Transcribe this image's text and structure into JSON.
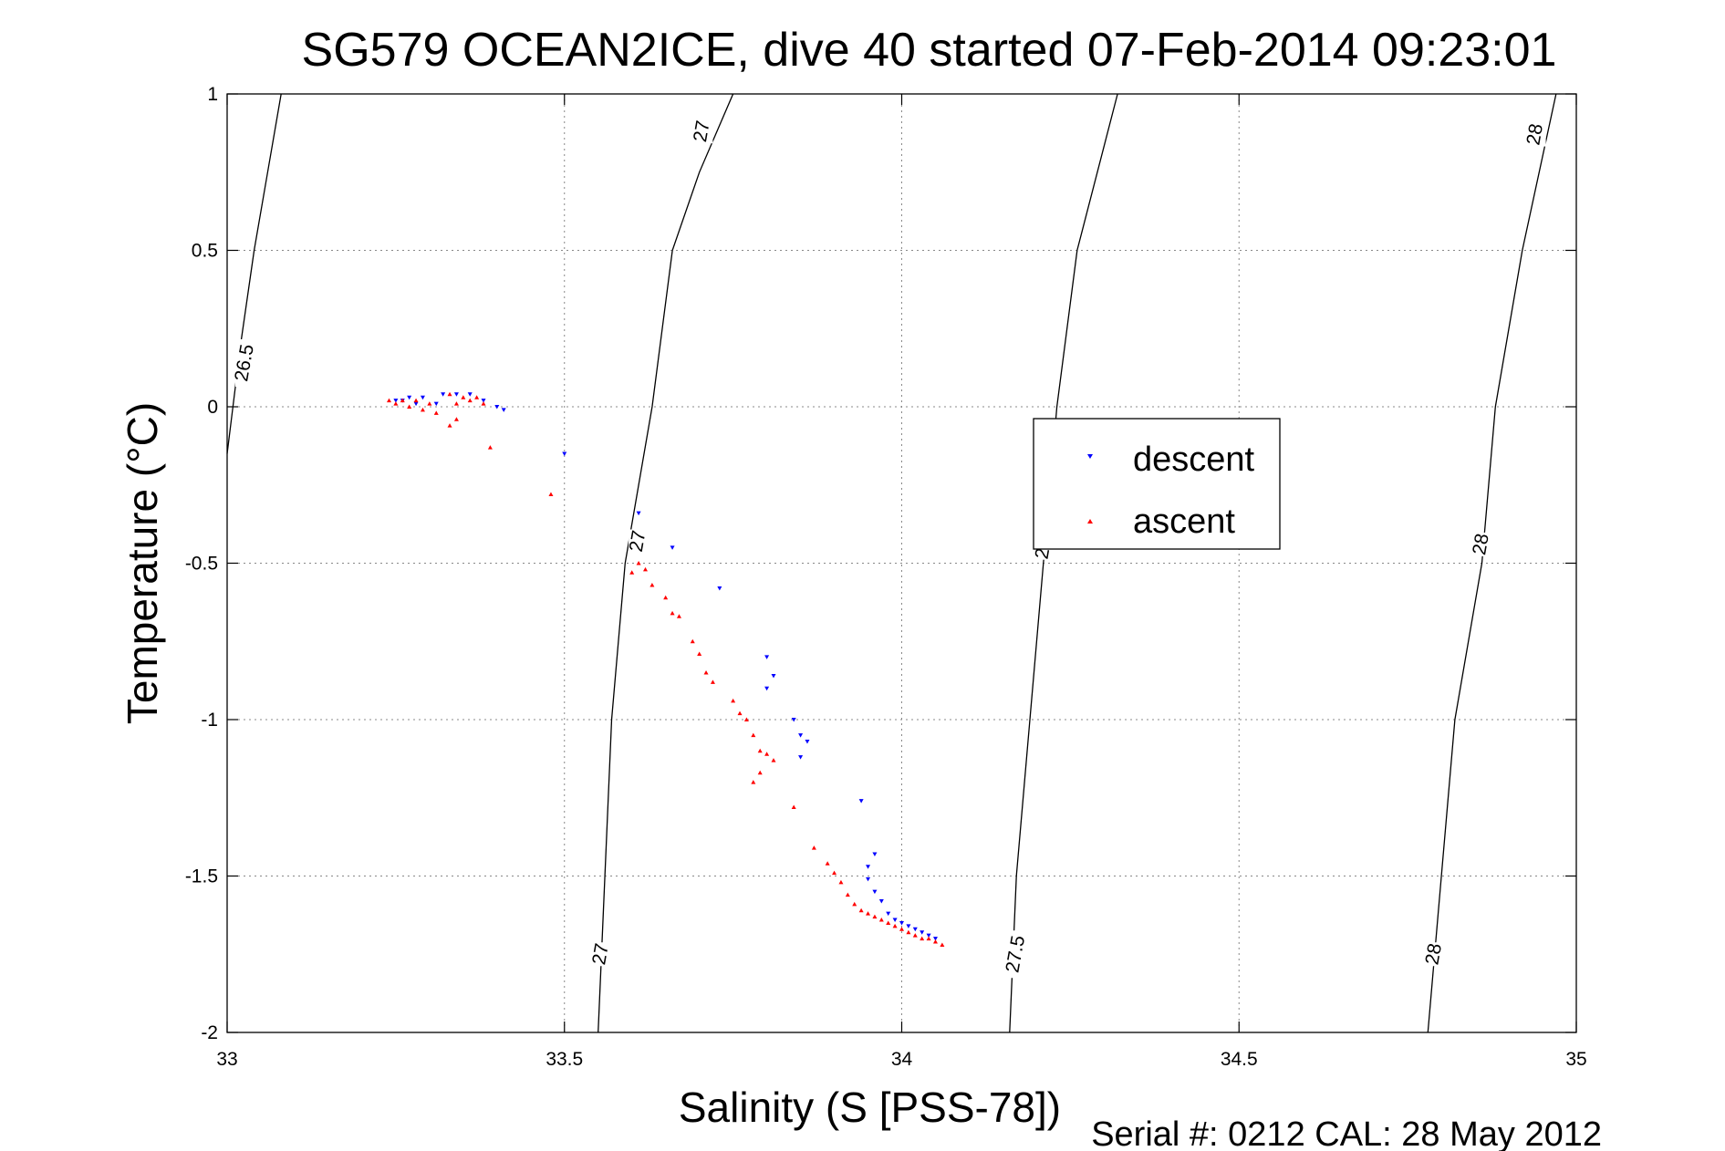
{
  "chart_data": {
    "type": "scatter",
    "title": "SG579 OCEAN2ICE, dive 40 started 07-Feb-2014 09:23:01",
    "xlabel": "Salinity (S [PSS-78])",
    "ylabel": "Temperature (°C)",
    "xlim": [
      33,
      35
    ],
    "ylim": [
      -2,
      1
    ],
    "xticks": [
      "33",
      "33.5",
      "34",
      "34.5",
      "35"
    ],
    "yticks": [
      "-2",
      "-1.5",
      "-1",
      "-0.5",
      "0",
      "0.5",
      "1"
    ],
    "grid": true,
    "legend": "center-right",
    "footer": "Serial #: 0212  CAL: 28 May 2012",
    "series": [
      {
        "name": "descent",
        "color": "#0000ff",
        "marker": "triangle-down",
        "points": [
          [
            33.25,
            0.02
          ],
          [
            33.26,
            0.02
          ],
          [
            33.27,
            0.03
          ],
          [
            33.28,
            0.01
          ],
          [
            33.29,
            0.03
          ],
          [
            33.31,
            0.01
          ],
          [
            33.32,
            0.04
          ],
          [
            33.34,
            0.04
          ],
          [
            33.36,
            0.04
          ],
          [
            33.38,
            0.02
          ],
          [
            33.4,
            0.0
          ],
          [
            33.41,
            -0.01
          ],
          [
            33.5,
            -0.15
          ],
          [
            33.61,
            -0.34
          ],
          [
            33.66,
            -0.45
          ],
          [
            33.73,
            -0.58
          ],
          [
            33.8,
            -0.8
          ],
          [
            33.81,
            -0.86
          ],
          [
            33.8,
            -0.9
          ],
          [
            33.84,
            -1.0
          ],
          [
            33.85,
            -1.05
          ],
          [
            33.86,
            -1.07
          ],
          [
            33.85,
            -1.12
          ],
          [
            33.94,
            -1.26
          ],
          [
            33.96,
            -1.43
          ],
          [
            33.95,
            -1.47
          ],
          [
            33.95,
            -1.51
          ],
          [
            33.96,
            -1.55
          ],
          [
            33.97,
            -1.58
          ],
          [
            33.98,
            -1.62
          ],
          [
            33.99,
            -1.64
          ],
          [
            34.0,
            -1.65
          ],
          [
            34.01,
            -1.66
          ],
          [
            34.02,
            -1.67
          ],
          [
            34.03,
            -1.68
          ],
          [
            34.04,
            -1.69
          ],
          [
            34.05,
            -1.7
          ]
        ]
      },
      {
        "name": "ascent",
        "color": "#ff0000",
        "marker": "triangle-up",
        "points": [
          [
            33.24,
            0.02
          ],
          [
            33.25,
            0.01
          ],
          [
            33.26,
            0.02
          ],
          [
            33.27,
            0.0
          ],
          [
            33.28,
            0.02
          ],
          [
            33.29,
            -0.01
          ],
          [
            33.3,
            0.01
          ],
          [
            33.31,
            -0.02
          ],
          [
            33.33,
            0.04
          ],
          [
            33.34,
            0.01
          ],
          [
            33.35,
            0.03
          ],
          [
            33.36,
            0.02
          ],
          [
            33.37,
            0.03
          ],
          [
            33.38,
            0.01
          ],
          [
            33.33,
            -0.06
          ],
          [
            33.34,
            -0.04
          ],
          [
            33.39,
            -0.13
          ],
          [
            33.48,
            -0.28
          ],
          [
            33.61,
            -0.5
          ],
          [
            33.62,
            -0.52
          ],
          [
            33.6,
            -0.53
          ],
          [
            33.63,
            -0.57
          ],
          [
            33.65,
            -0.61
          ],
          [
            33.66,
            -0.66
          ],
          [
            33.67,
            -0.67
          ],
          [
            33.69,
            -0.75
          ],
          [
            33.7,
            -0.79
          ],
          [
            33.71,
            -0.85
          ],
          [
            33.72,
            -0.88
          ],
          [
            33.75,
            -0.94
          ],
          [
            33.76,
            -0.98
          ],
          [
            33.77,
            -1.0
          ],
          [
            33.78,
            -1.05
          ],
          [
            33.79,
            -1.1
          ],
          [
            33.8,
            -1.11
          ],
          [
            33.81,
            -1.13
          ],
          [
            33.79,
            -1.17
          ],
          [
            33.78,
            -1.2
          ],
          [
            33.84,
            -1.28
          ],
          [
            33.87,
            -1.41
          ],
          [
            33.89,
            -1.46
          ],
          [
            33.9,
            -1.49
          ],
          [
            33.91,
            -1.52
          ],
          [
            33.92,
            -1.56
          ],
          [
            33.93,
            -1.59
          ],
          [
            33.94,
            -1.61
          ],
          [
            33.95,
            -1.62
          ],
          [
            33.96,
            -1.63
          ],
          [
            33.97,
            -1.64
          ],
          [
            33.98,
            -1.65
          ],
          [
            33.99,
            -1.66
          ],
          [
            34.0,
            -1.67
          ],
          [
            34.01,
            -1.68
          ],
          [
            34.02,
            -1.69
          ],
          [
            34.03,
            -1.7
          ],
          [
            34.04,
            -1.7
          ],
          [
            34.05,
            -1.71
          ],
          [
            34.06,
            -1.72
          ]
        ]
      }
    ],
    "contours": [
      {
        "level": "26.5",
        "points": [
          [
            33.08,
            1.0
          ],
          [
            33.06,
            0.75
          ],
          [
            33.04,
            0.5
          ],
          [
            33.02,
            0.2
          ],
          [
            33.0,
            -0.15
          ]
        ],
        "labels": [
          {
            "text": "26.5",
            "x": 33.027,
            "y": 0.14
          }
        ]
      },
      {
        "level": "27",
        "points": [
          [
            33.75,
            1.0
          ],
          [
            33.7,
            0.75
          ],
          [
            33.66,
            0.5
          ],
          [
            33.63,
            0.0
          ],
          [
            33.59,
            -0.5
          ],
          [
            33.57,
            -1.0
          ],
          [
            33.56,
            -1.5
          ],
          [
            33.55,
            -2.0
          ]
        ],
        "labels": [
          {
            "text": "27",
            "x": 33.705,
            "y": 0.88
          },
          {
            "text": "27",
            "x": 33.61,
            "y": -0.43
          },
          {
            "text": "27",
            "x": 33.555,
            "y": -1.75
          }
        ]
      },
      {
        "level": "27.5",
        "points": [
          [
            34.32,
            1.0
          ],
          [
            34.26,
            0.5
          ],
          [
            34.23,
            0.0
          ],
          [
            34.21,
            -0.5
          ],
          [
            34.19,
            -1.0
          ],
          [
            34.17,
            -1.5
          ],
          [
            34.16,
            -2.0
          ]
        ],
        "labels": [
          {
            "text": "2",
            "x": 34.21,
            "y": -0.47
          },
          {
            "text": "27.5",
            "x": 34.17,
            "y": -1.75
          }
        ]
      },
      {
        "level": "28",
        "points": [
          [
            34.97,
            1.0
          ],
          [
            34.92,
            0.5
          ],
          [
            34.88,
            0.0
          ],
          [
            34.86,
            -0.5
          ],
          [
            34.82,
            -1.0
          ],
          [
            34.8,
            -1.5
          ],
          [
            34.78,
            -2.0
          ]
        ],
        "labels": [
          {
            "text": "28",
            "x": 34.94,
            "y": 0.87
          },
          {
            "text": "28",
            "x": 34.86,
            "y": -0.44
          },
          {
            "text": "28",
            "x": 34.79,
            "y": -1.75
          }
        ]
      }
    ]
  }
}
